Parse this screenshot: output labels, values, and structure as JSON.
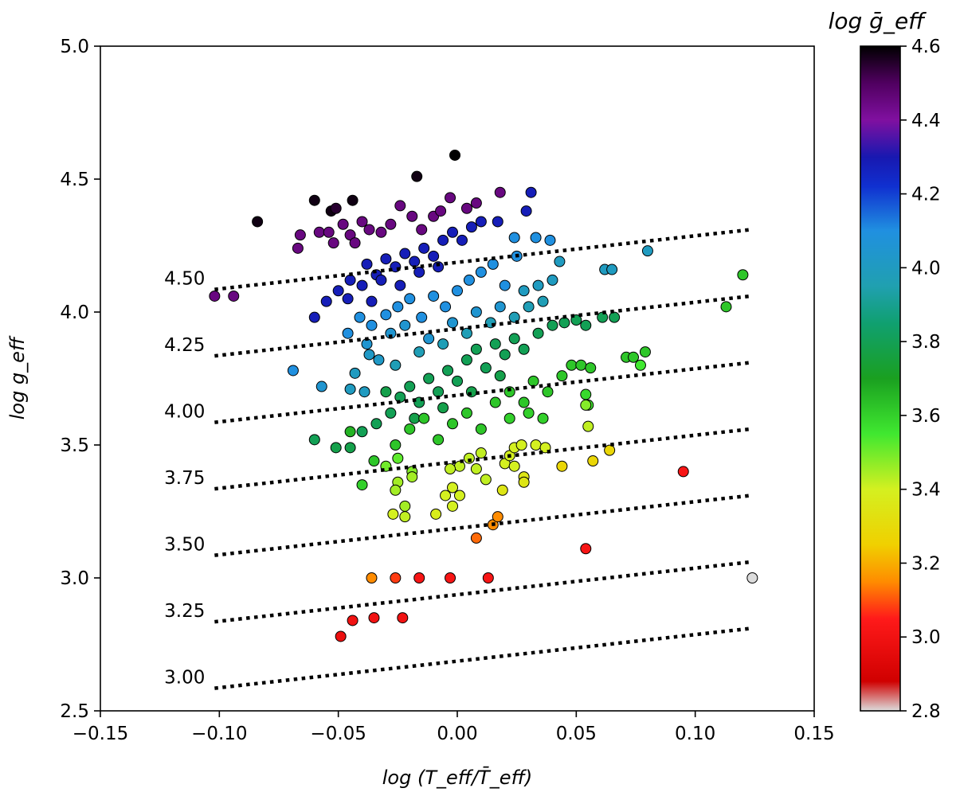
{
  "chart_data": {
    "type": "scatter",
    "xlabel": "log (T_eff/T̄_eff)",
    "ylabel": "log g_eff",
    "colorbar_label": "log ḡ_eff",
    "xlim": [
      -0.15,
      0.15
    ],
    "ylim": [
      2.5,
      5.0
    ],
    "xticks": [
      "−0.15",
      "−0.10",
      "−0.05",
      "0.00",
      "0.05",
      "0.10",
      "0.15"
    ],
    "yticks": [
      "2.5",
      "3.0",
      "3.5",
      "4.0",
      "4.5",
      "5.0"
    ],
    "colorbar": {
      "range": [
        2.8,
        4.6
      ],
      "ticks": [
        "2.8",
        "3.0",
        "3.2",
        "3.4",
        "3.6",
        "3.8",
        "4.0",
        "4.2",
        "4.4",
        "4.6"
      ],
      "colormap": [
        [
          2.8,
          "#dcdcdc"
        ],
        [
          2.88,
          "#d00000"
        ],
        [
          3.05,
          "#ff1a1a"
        ],
        [
          3.15,
          "#ff8c00"
        ],
        [
          3.25,
          "#f0d000"
        ],
        [
          3.4,
          "#d4f020"
        ],
        [
          3.55,
          "#40e830"
        ],
        [
          3.7,
          "#1aa020"
        ],
        [
          3.85,
          "#10a070"
        ],
        [
          3.95,
          "#20a0b0"
        ],
        [
          4.1,
          "#2090e0"
        ],
        [
          4.22,
          "#1030d0"
        ],
        [
          4.3,
          "#1818b0"
        ],
        [
          4.4,
          "#8010a0"
        ],
        [
          4.5,
          "#500060"
        ],
        [
          4.6,
          "#000000"
        ]
      ]
    },
    "isolines": [
      {
        "label": "4.50",
        "value": 4.5
      },
      {
        "label": "4.25",
        "value": 4.25
      },
      {
        "label": "4.00",
        "value": 4.0
      },
      {
        "label": "3.75",
        "value": 3.75
      },
      {
        "label": "3.50",
        "value": 3.5
      },
      {
        "label": "3.25",
        "value": 3.25
      },
      {
        "label": "3.00",
        "value": 3.0
      }
    ],
    "isoline_x_range": [
      -0.102,
      0.123
    ],
    "isoline_slope": 3.33,
    "points": [
      [
        -0.084,
        4.34,
        4.58
      ],
      [
        -0.06,
        4.42,
        4.58
      ],
      [
        -0.053,
        4.38,
        4.58
      ],
      [
        -0.044,
        4.42,
        4.58
      ],
      [
        -0.017,
        4.51,
        4.58
      ],
      [
        -0.001,
        4.59,
        4.6
      ],
      [
        -0.051,
        4.39,
        4.55
      ],
      [
        -0.102,
        4.06,
        4.45
      ],
      [
        -0.094,
        4.06,
        4.45
      ],
      [
        -0.066,
        4.29,
        4.45
      ],
      [
        -0.067,
        4.24,
        4.45
      ],
      [
        -0.058,
        4.3,
        4.45
      ],
      [
        -0.054,
        4.3,
        4.45
      ],
      [
        -0.048,
        4.33,
        4.45
      ],
      [
        -0.045,
        4.29,
        4.45
      ],
      [
        -0.04,
        4.34,
        4.45
      ],
      [
        -0.037,
        4.31,
        4.45
      ],
      [
        -0.032,
        4.3,
        4.45
      ],
      [
        -0.028,
        4.33,
        4.45
      ],
      [
        -0.024,
        4.4,
        4.45
      ],
      [
        -0.019,
        4.36,
        4.45
      ],
      [
        -0.015,
        4.31,
        4.45
      ],
      [
        -0.01,
        4.36,
        4.45
      ],
      [
        -0.007,
        4.38,
        4.45
      ],
      [
        -0.003,
        4.43,
        4.45
      ],
      [
        0.004,
        4.39,
        4.45
      ],
      [
        0.008,
        4.41,
        4.45
      ],
      [
        0.018,
        4.45,
        4.45
      ],
      [
        -0.052,
        4.26,
        4.45
      ],
      [
        -0.043,
        4.26,
        4.45
      ],
      [
        -0.06,
        3.98,
        4.28
      ],
      [
        -0.055,
        4.04,
        4.28
      ],
      [
        -0.05,
        4.08,
        4.28
      ],
      [
        -0.045,
        4.12,
        4.28
      ],
      [
        -0.038,
        4.18,
        4.28
      ],
      [
        -0.034,
        4.14,
        4.28
      ],
      [
        -0.03,
        4.2,
        4.28
      ],
      [
        -0.026,
        4.17,
        4.28
      ],
      [
        -0.022,
        4.22,
        4.28
      ],
      [
        -0.018,
        4.19,
        4.28
      ],
      [
        -0.014,
        4.24,
        4.28
      ],
      [
        -0.01,
        4.21,
        4.28
      ],
      [
        -0.006,
        4.27,
        4.28
      ],
      [
        -0.002,
        4.3,
        4.28
      ],
      [
        0.002,
        4.27,
        4.28
      ],
      [
        0.006,
        4.32,
        4.28
      ],
      [
        0.01,
        4.34,
        4.28
      ],
      [
        0.017,
        4.34,
        4.28
      ],
      [
        0.031,
        4.45,
        4.28
      ],
      [
        0.029,
        4.38,
        4.28
      ],
      [
        -0.04,
        4.1,
        4.28
      ],
      [
        -0.032,
        4.12,
        4.28
      ],
      [
        -0.024,
        4.1,
        4.28
      ],
      [
        -0.016,
        4.15,
        4.28
      ],
      [
        -0.008,
        4.17,
        4.28
      ],
      [
        -0.046,
        4.05,
        4.28
      ],
      [
        -0.036,
        4.04,
        4.28
      ],
      [
        -0.069,
        3.78,
        4.1
      ],
      [
        -0.057,
        3.72,
        4.05
      ],
      [
        -0.046,
        3.92,
        4.1
      ],
      [
        -0.041,
        3.98,
        4.1
      ],
      [
        -0.036,
        3.95,
        4.1
      ],
      [
        -0.03,
        3.99,
        4.1
      ],
      [
        -0.025,
        4.02,
        4.1
      ],
      [
        -0.02,
        4.05,
        4.1
      ],
      [
        -0.015,
        3.98,
        4.1
      ],
      [
        -0.01,
        4.06,
        4.1
      ],
      [
        -0.005,
        4.02,
        4.1
      ],
      [
        0.0,
        4.08,
        4.1
      ],
      [
        0.005,
        4.12,
        4.1
      ],
      [
        0.01,
        4.15,
        4.1
      ],
      [
        0.015,
        4.18,
        4.1
      ],
      [
        0.02,
        4.1,
        4.1
      ],
      [
        0.025,
        4.21,
        4.1
      ],
      [
        0.024,
        4.28,
        4.1
      ],
      [
        0.033,
        4.28,
        4.1
      ],
      [
        0.039,
        4.27,
        4.1
      ],
      [
        -0.038,
        3.88,
        4.05
      ],
      [
        -0.033,
        3.82,
        4.02
      ],
      [
        -0.028,
        3.92,
        4.05
      ],
      [
        -0.022,
        3.95,
        4.05
      ],
      [
        -0.012,
        3.9,
        4.05
      ],
      [
        -0.002,
        3.96,
        4.05
      ],
      [
        0.008,
        4.0,
        4.05
      ],
      [
        0.018,
        4.02,
        4.05
      ],
      [
        -0.045,
        3.71,
        4.0
      ],
      [
        -0.043,
        3.77,
        4.0
      ],
      [
        -0.039,
        3.7,
        4.0
      ],
      [
        -0.037,
        3.84,
        4.02
      ],
      [
        0.028,
        4.08,
        4.0
      ],
      [
        0.034,
        4.1,
        4.0
      ],
      [
        0.04,
        4.12,
        4.0
      ],
      [
        0.043,
        4.19,
        4.0
      ],
      [
        0.062,
        4.16,
        4.0
      ],
      [
        0.065,
        4.16,
        4.0
      ],
      [
        0.08,
        4.23,
        4.0
      ],
      [
        0.036,
        4.04,
        3.97
      ],
      [
        0.03,
        4.02,
        3.97
      ],
      [
        0.024,
        3.98,
        3.97
      ],
      [
        0.014,
        3.96,
        3.97
      ],
      [
        0.004,
        3.92,
        3.97
      ],
      [
        -0.006,
        3.88,
        3.97
      ],
      [
        -0.016,
        3.85,
        3.97
      ],
      [
        -0.026,
        3.8,
        3.97
      ],
      [
        0.12,
        4.14,
        3.62
      ],
      [
        0.113,
        4.02,
        3.62
      ],
      [
        -0.06,
        3.52,
        3.8
      ],
      [
        -0.051,
        3.49,
        3.78
      ],
      [
        -0.045,
        3.49,
        3.78
      ],
      [
        -0.04,
        3.55,
        3.8
      ],
      [
        -0.034,
        3.58,
        3.8
      ],
      [
        -0.028,
        3.62,
        3.8
      ],
      [
        -0.024,
        3.68,
        3.8
      ],
      [
        -0.02,
        3.72,
        3.8
      ],
      [
        -0.016,
        3.66,
        3.8
      ],
      [
        -0.012,
        3.75,
        3.8
      ],
      [
        -0.008,
        3.7,
        3.8
      ],
      [
        -0.004,
        3.78,
        3.8
      ],
      [
        0.0,
        3.74,
        3.8
      ],
      [
        0.004,
        3.82,
        3.8
      ],
      [
        0.008,
        3.86,
        3.8
      ],
      [
        0.012,
        3.79,
        3.8
      ],
      [
        0.016,
        3.88,
        3.8
      ],
      [
        0.02,
        3.84,
        3.8
      ],
      [
        0.024,
        3.9,
        3.8
      ],
      [
        0.028,
        3.86,
        3.8
      ],
      [
        0.034,
        3.92,
        3.8
      ],
      [
        0.04,
        3.95,
        3.8
      ],
      [
        0.045,
        3.96,
        3.8
      ],
      [
        0.05,
        3.97,
        3.8
      ],
      [
        0.054,
        3.95,
        3.8
      ],
      [
        0.061,
        3.98,
        3.8
      ],
      [
        0.066,
        3.98,
        3.8
      ],
      [
        -0.03,
        3.7,
        3.78
      ],
      [
        -0.018,
        3.6,
        3.78
      ],
      [
        -0.006,
        3.64,
        3.78
      ],
      [
        0.006,
        3.7,
        3.78
      ],
      [
        0.018,
        3.76,
        3.78
      ],
      [
        -0.045,
        3.55,
        3.66
      ],
      [
        -0.035,
        3.44,
        3.62
      ],
      [
        -0.04,
        3.35,
        3.6
      ],
      [
        -0.026,
        3.5,
        3.62
      ],
      [
        -0.02,
        3.56,
        3.62
      ],
      [
        -0.014,
        3.6,
        3.62
      ],
      [
        -0.008,
        3.52,
        3.62
      ],
      [
        -0.002,
        3.58,
        3.62
      ],
      [
        0.004,
        3.62,
        3.62
      ],
      [
        0.01,
        3.56,
        3.62
      ],
      [
        0.016,
        3.66,
        3.62
      ],
      [
        0.022,
        3.7,
        3.62
      ],
      [
        0.028,
        3.66,
        3.62
      ],
      [
        0.032,
        3.74,
        3.62
      ],
      [
        0.038,
        3.7,
        3.62
      ],
      [
        0.044,
        3.76,
        3.62
      ],
      [
        0.048,
        3.8,
        3.62
      ],
      [
        0.052,
        3.8,
        3.62
      ],
      [
        0.056,
        3.79,
        3.62
      ],
      [
        0.071,
        3.83,
        3.62
      ],
      [
        0.074,
        3.83,
        3.62
      ],
      [
        0.079,
        3.85,
        3.62
      ],
      [
        0.077,
        3.8,
        3.55
      ],
      [
        0.03,
        3.62,
        3.6
      ],
      [
        0.036,
        3.6,
        3.6
      ],
      [
        0.054,
        3.69,
        3.58
      ],
      [
        0.055,
        3.65,
        3.55
      ],
      [
        0.022,
        3.6,
        3.6
      ],
      [
        -0.025,
        3.45,
        3.52
      ],
      [
        -0.03,
        3.42,
        3.5
      ],
      [
        -0.019,
        3.4,
        3.48
      ],
      [
        -0.025,
        3.36,
        3.45
      ],
      [
        -0.026,
        3.33,
        3.45
      ],
      [
        -0.019,
        3.38,
        3.45
      ],
      [
        -0.022,
        3.27,
        3.45
      ],
      [
        -0.022,
        3.23,
        3.42
      ],
      [
        -0.027,
        3.24,
        3.4
      ],
      [
        -0.009,
        3.24,
        3.38
      ],
      [
        -0.005,
        3.31,
        3.4
      ],
      [
        -0.002,
        3.34,
        3.4
      ],
      [
        0.001,
        3.31,
        3.4
      ],
      [
        -0.002,
        3.27,
        3.4
      ],
      [
        0.008,
        3.41,
        3.42
      ],
      [
        0.012,
        3.37,
        3.42
      ],
      [
        0.005,
        3.45,
        3.42
      ],
      [
        0.001,
        3.42,
        3.42
      ],
      [
        0.01,
        3.47,
        3.42
      ],
      [
        -0.003,
        3.41,
        3.42
      ],
      [
        0.02,
        3.43,
        3.4
      ],
      [
        0.022,
        3.46,
        3.4
      ],
      [
        0.024,
        3.49,
        3.4
      ],
      [
        0.027,
        3.5,
        3.4
      ],
      [
        0.033,
        3.5,
        3.4
      ],
      [
        0.037,
        3.49,
        3.4
      ],
      [
        0.024,
        3.42,
        3.4
      ],
      [
        0.019,
        3.33,
        3.35
      ],
      [
        0.028,
        3.38,
        3.35
      ],
      [
        0.028,
        3.36,
        3.35
      ],
      [
        0.055,
        3.57,
        3.42
      ],
      [
        0.054,
        3.65,
        3.48
      ],
      [
        0.044,
        3.42,
        3.28
      ],
      [
        0.057,
        3.44,
        3.28
      ],
      [
        0.064,
        3.48,
        3.28
      ],
      [
        0.015,
        3.2,
        3.15
      ],
      [
        0.017,
        3.23,
        3.15
      ],
      [
        0.008,
        3.15,
        3.12
      ],
      [
        0.054,
        3.11,
        3.02
      ],
      [
        -0.036,
        3.0,
        3.15
      ],
      [
        -0.026,
        3.0,
        3.08
      ],
      [
        -0.016,
        3.0,
        3.02
      ],
      [
        -0.003,
        3.0,
        3.02
      ],
      [
        0.013,
        3.0,
        3.02
      ],
      [
        -0.044,
        2.84,
        3.0
      ],
      [
        -0.035,
        2.85,
        3.0
      ],
      [
        -0.023,
        2.85,
        3.0
      ],
      [
        -0.049,
        2.78,
        2.98
      ],
      [
        0.095,
        3.4,
        3.02
      ],
      [
        0.124,
        3.0,
        2.8
      ]
    ]
  }
}
